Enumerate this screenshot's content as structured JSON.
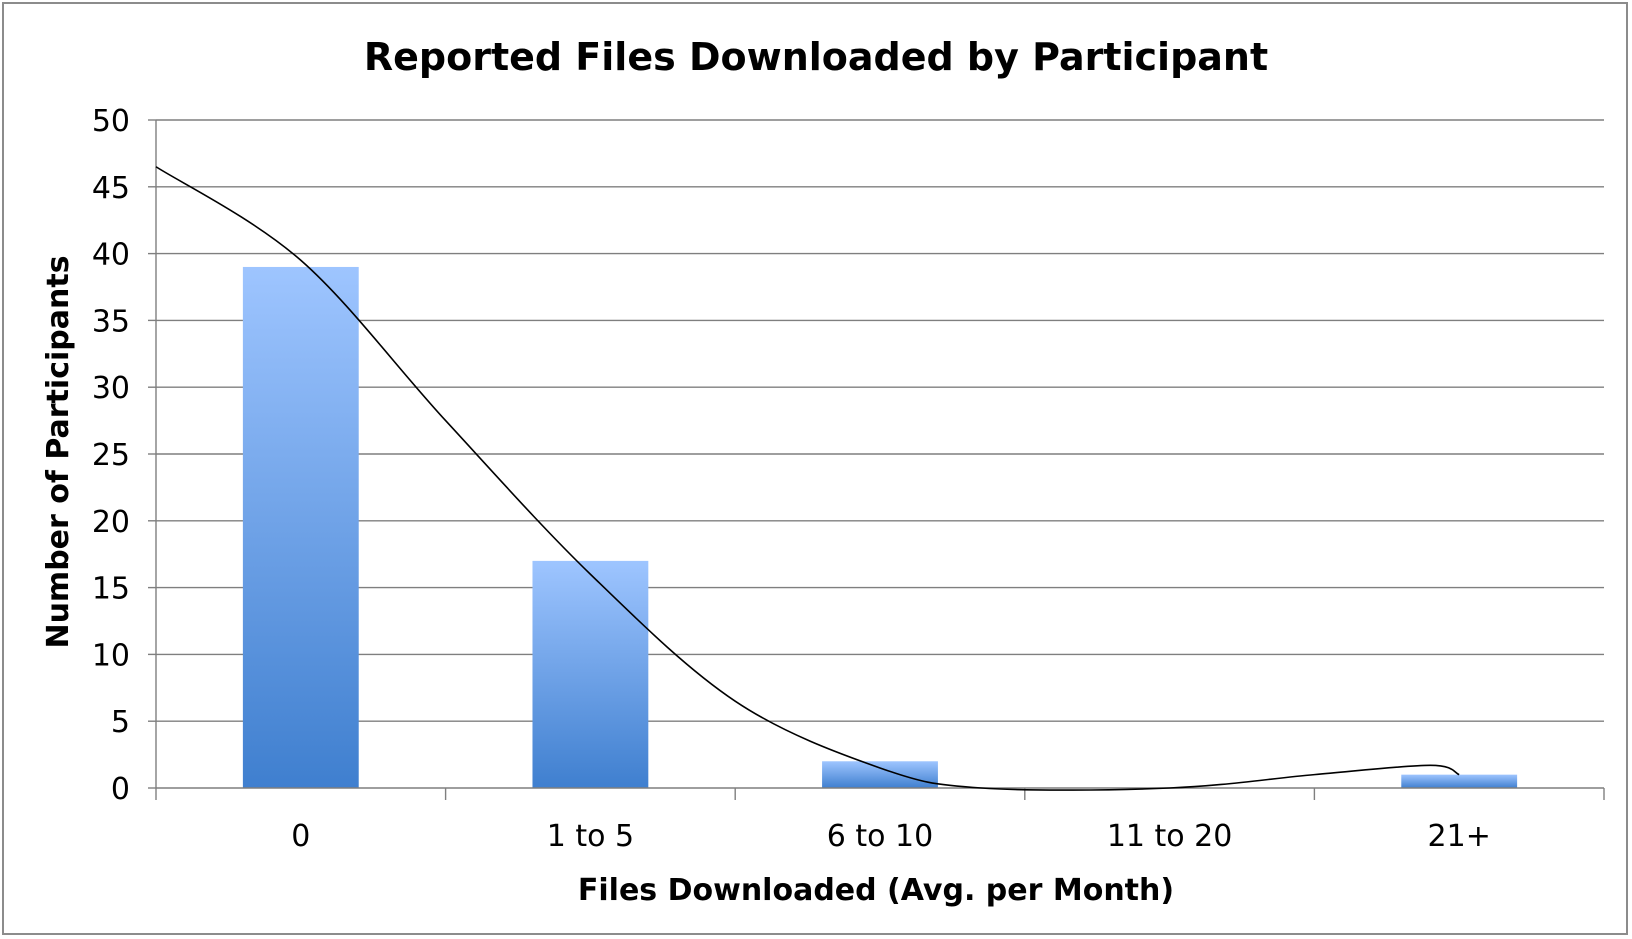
{
  "chart_data": {
    "type": "bar",
    "title": "Reported Files Downloaded by Participant",
    "xlabel": "Files Downloaded (Avg. per Month)",
    "ylabel": "Number of Participants",
    "categories": [
      "0",
      "1 to 5",
      "6 to 10",
      "11 to 20",
      "21+"
    ],
    "values": [
      39,
      17,
      2,
      0,
      1
    ],
    "ylim": [
      0,
      50
    ],
    "yticks": [
      0,
      5,
      10,
      15,
      20,
      25,
      30,
      35,
      40,
      45,
      50
    ],
    "grid": true,
    "legend": "none",
    "trendline": {
      "type": "polynomial",
      "points": [
        {
          "x": -0.5,
          "y": 46.5
        },
        {
          "x": 0,
          "y": 39.5
        },
        {
          "x": 0.5,
          "y": 27.5
        },
        {
          "x": 1,
          "y": 16.0
        },
        {
          "x": 1.5,
          "y": 6.5
        },
        {
          "x": 2,
          "y": 1.5
        },
        {
          "x": 2.35,
          "y": 0.0
        },
        {
          "x": 3.0,
          "y": 0.0
        },
        {
          "x": 3.5,
          "y": 1.0
        },
        {
          "x": 3.9,
          "y": 1.7
        },
        {
          "x": 4.0,
          "y": 1.0
        }
      ]
    },
    "colors": {
      "bar_top": "#9ec5ff",
      "bar_bottom": "#3f7fcf",
      "grid": "#7f7f7f",
      "trendline": "#000000"
    }
  }
}
